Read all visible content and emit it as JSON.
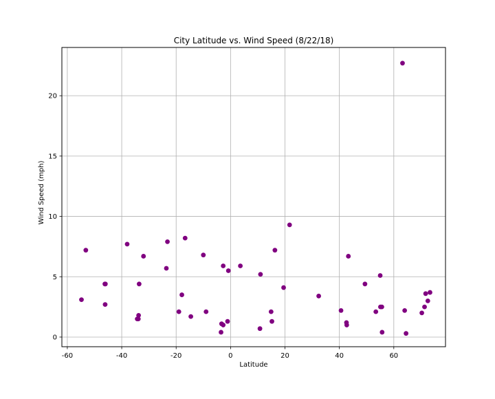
{
  "chart_data": {
    "type": "scatter",
    "title": "City Latitude vs. Wind Speed (8/22/18)",
    "xlabel": "Latitude",
    "ylabel": "Wind Speed (mph)",
    "xlim": [
      -62,
      79
    ],
    "ylim": [
      -0.8,
      24
    ],
    "xticks": [
      -60,
      -40,
      -20,
      0,
      20,
      40,
      60
    ],
    "yticks": [
      0,
      5,
      10,
      15,
      20
    ],
    "grid": true,
    "legend": "none",
    "marker_color": "#800080",
    "grid_color": "#b0b0b0",
    "points": [
      {
        "x": -54.8,
        "y": 3.1
      },
      {
        "x": -53.2,
        "y": 7.2
      },
      {
        "x": -46.2,
        "y": 4.4
      },
      {
        "x": -46.0,
        "y": 4.4
      },
      {
        "x": -46.1,
        "y": 2.7
      },
      {
        "x": -38.0,
        "y": 7.7
      },
      {
        "x": -34.3,
        "y": 1.5
      },
      {
        "x": -33.9,
        "y": 1.5
      },
      {
        "x": -33.8,
        "y": 1.8
      },
      {
        "x": -33.6,
        "y": 4.4
      },
      {
        "x": -32.0,
        "y": 6.7
      },
      {
        "x": -23.6,
        "y": 5.7
      },
      {
        "x": -23.2,
        "y": 7.9
      },
      {
        "x": -19.0,
        "y": 2.1
      },
      {
        "x": -17.9,
        "y": 3.5
      },
      {
        "x": -16.7,
        "y": 8.2
      },
      {
        "x": -14.6,
        "y": 1.7
      },
      {
        "x": -10.0,
        "y": 6.8
      },
      {
        "x": -9.0,
        "y": 2.1
      },
      {
        "x": -3.5,
        "y": 0.4
      },
      {
        "x": -3.3,
        "y": 1.1
      },
      {
        "x": -2.7,
        "y": 1.0
      },
      {
        "x": -2.7,
        "y": 5.9
      },
      {
        "x": -1.1,
        "y": 1.3
      },
      {
        "x": -0.8,
        "y": 5.5
      },
      {
        "x": 3.6,
        "y": 5.9
      },
      {
        "x": 10.8,
        "y": 0.7
      },
      {
        "x": 11.0,
        "y": 5.2
      },
      {
        "x": 14.9,
        "y": 2.1
      },
      {
        "x": 15.2,
        "y": 1.3
      },
      {
        "x": 16.3,
        "y": 7.2
      },
      {
        "x": 19.5,
        "y": 4.1
      },
      {
        "x": 21.7,
        "y": 9.3
      },
      {
        "x": 32.4,
        "y": 3.4
      },
      {
        "x": 40.6,
        "y": 2.2
      },
      {
        "x": 42.6,
        "y": 1.2
      },
      {
        "x": 42.7,
        "y": 1.0
      },
      {
        "x": 43.3,
        "y": 6.7
      },
      {
        "x": 49.4,
        "y": 4.4
      },
      {
        "x": 53.4,
        "y": 2.1
      },
      {
        "x": 55.0,
        "y": 5.1
      },
      {
        "x": 55.1,
        "y": 2.5
      },
      {
        "x": 55.6,
        "y": 2.5
      },
      {
        "x": 55.7,
        "y": 0.4
      },
      {
        "x": 63.2,
        "y": 22.7
      },
      {
        "x": 64.0,
        "y": 2.2
      },
      {
        "x": 64.5,
        "y": 0.3
      },
      {
        "x": 70.3,
        "y": 2.0
      },
      {
        "x": 71.3,
        "y": 2.5
      },
      {
        "x": 71.7,
        "y": 3.6
      },
      {
        "x": 72.5,
        "y": 3.0
      },
      {
        "x": 73.3,
        "y": 3.7
      }
    ]
  }
}
